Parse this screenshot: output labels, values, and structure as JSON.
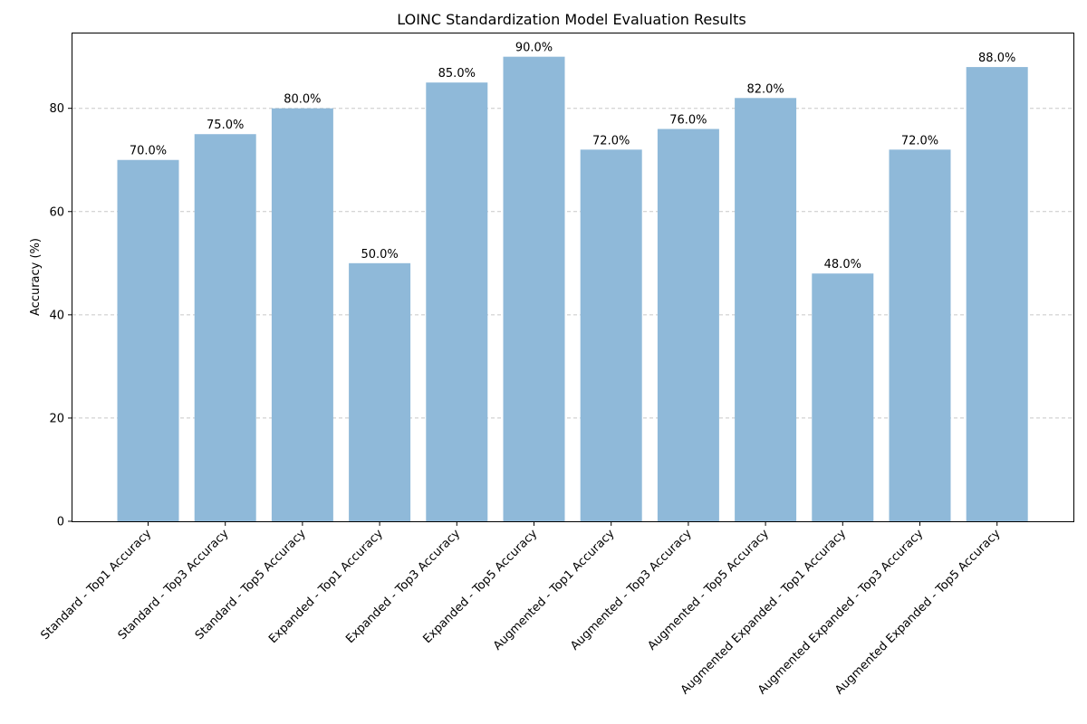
{
  "chart_data": {
    "type": "bar",
    "title": "LOINC Standardization Model Evaluation Results",
    "xlabel": "",
    "ylabel": "Accuracy (%)",
    "ylim": [
      0,
      94.5
    ],
    "yticks": [
      0,
      20,
      40,
      60,
      80
    ],
    "grid": "horizontal-dashed",
    "bar_color": "#8fb9d9",
    "categories": [
      "Standard - Top1 Accuracy",
      "Standard - Top3 Accuracy",
      "Standard - Top5 Accuracy",
      "Expanded - Top1 Accuracy",
      "Expanded - Top3 Accuracy",
      "Expanded - Top5 Accuracy",
      "Augmented - Top1 Accuracy",
      "Augmented - Top3 Accuracy",
      "Augmented - Top5 Accuracy",
      "Augmented Expanded - Top1 Accuracy",
      "Augmented Expanded - Top3 Accuracy",
      "Augmented Expanded - Top5 Accuracy"
    ],
    "values": [
      70,
      75,
      80,
      50,
      85,
      90,
      72,
      76,
      82,
      48,
      72,
      88
    ],
    "data_labels": [
      "70.0%",
      "75.0%",
      "80.0%",
      "50.0%",
      "85.0%",
      "90.0%",
      "72.0%",
      "76.0%",
      "82.0%",
      "48.0%",
      "72.0%",
      "88.0%"
    ]
  }
}
